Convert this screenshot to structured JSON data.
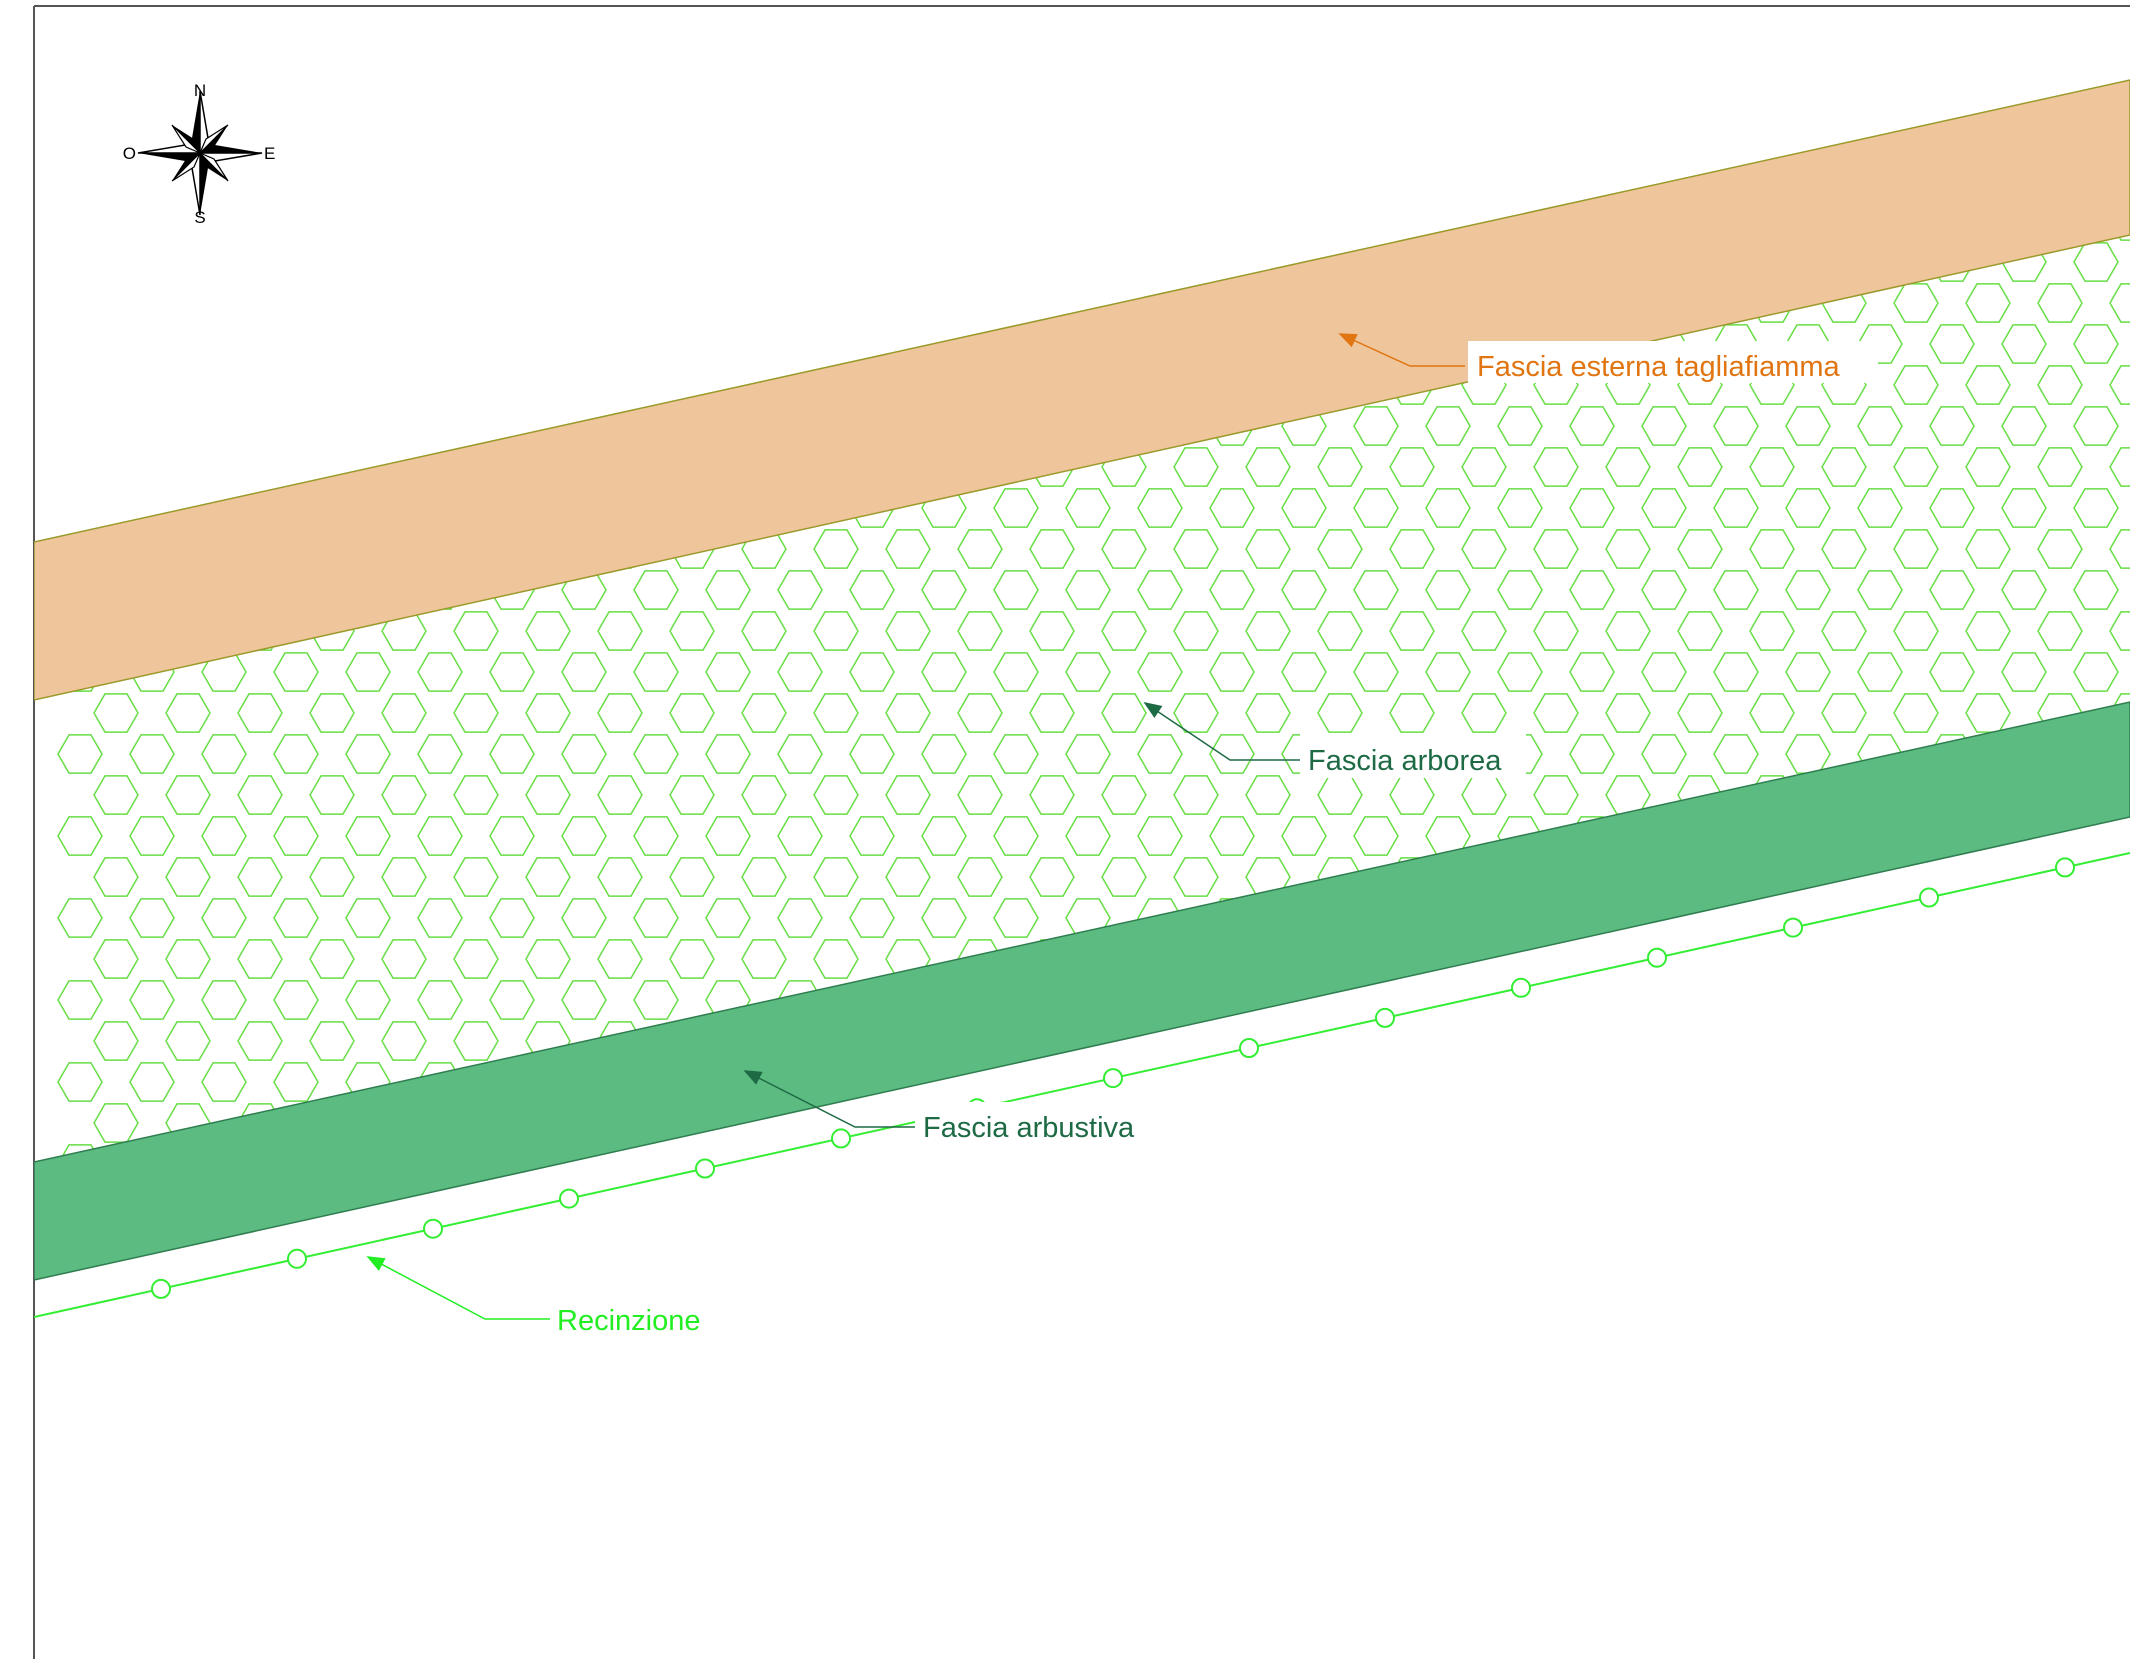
{
  "compass": {
    "north": "N",
    "south": "S",
    "east": "E",
    "west": "O"
  },
  "labels": {
    "firebreak": "Fascia esterna tagliafiamma",
    "tree_belt": "Fascia arborea",
    "shrub_belt": "Fascia arbustiva",
    "fence": "Recinzione"
  },
  "colors": {
    "firebreak_fill": "#efc59b",
    "firebreak_text": "#e07511",
    "shrub_fill": "#5bbb80",
    "shrub_text": "#1d6a45",
    "tree_symbol": "#66dd44",
    "fence": "#33ee33",
    "fence_text": "#22ee22"
  },
  "legend_icons": [
    "compass-rose-icon",
    "hexagon-tree-icon",
    "fence-post-icon"
  ]
}
